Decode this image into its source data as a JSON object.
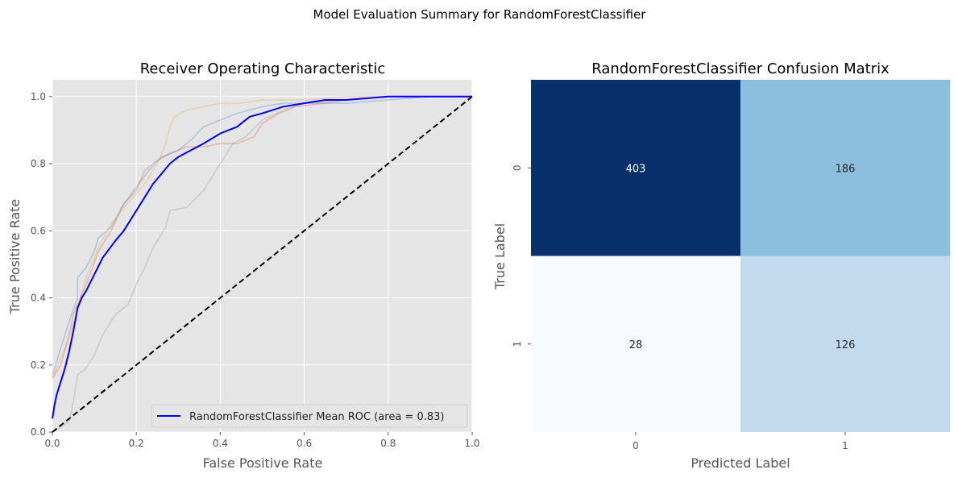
{
  "suptitle": "Model Evaluation Summary for RandomForestClassifier",
  "chart_data": [
    {
      "type": "line",
      "title": "Receiver Operating Characteristic",
      "xlabel": "False Positive Rate",
      "ylabel": "True Positive Rate",
      "xlim": [
        0,
        1
      ],
      "ylim": [
        0,
        1.05
      ],
      "xticks": [
        "0.0",
        "0.2",
        "0.4",
        "0.6",
        "0.8",
        "1.0"
      ],
      "yticks": [
        "0.0",
        "0.2",
        "0.4",
        "0.6",
        "0.8",
        "1.0"
      ],
      "grid": true,
      "legend_position": "lower-right",
      "legend": [
        "RandomForestClassifier Mean ROC (area = 0.83)"
      ],
      "series": [
        {
          "name": "RandomForestClassifier Mean ROC (area = 0.83)",
          "color": "#0000ff",
          "style": "mean",
          "x": [
            0,
            0.005,
            0.01,
            0.02,
            0.03,
            0.04,
            0.05,
            0.06,
            0.07,
            0.08,
            0.1,
            0.12,
            0.15,
            0.17,
            0.2,
            0.22,
            0.24,
            0.26,
            0.28,
            0.3,
            0.33,
            0.36,
            0.4,
            0.44,
            0.47,
            0.5,
            0.55,
            0.6,
            0.65,
            0.7,
            0.8,
            0.9,
            1.0
          ],
          "y": [
            0.04,
            0.08,
            0.11,
            0.15,
            0.19,
            0.24,
            0.3,
            0.37,
            0.4,
            0.42,
            0.47,
            0.52,
            0.57,
            0.6,
            0.66,
            0.7,
            0.74,
            0.77,
            0.8,
            0.82,
            0.84,
            0.86,
            0.89,
            0.91,
            0.94,
            0.95,
            0.97,
            0.98,
            0.99,
            0.99,
            1.0,
            1.0,
            1.0
          ]
        },
        {
          "name": "",
          "color": "#2e7bd0",
          "style": "fold",
          "x": [
            0,
            0.02,
            0.04,
            0.06,
            0.06,
            0.08,
            0.1,
            0.11,
            0.14,
            0.17,
            0.2,
            0.23,
            0.26,
            0.3,
            0.33,
            0.36,
            0.4,
            0.44,
            0.5,
            0.55,
            0.6,
            0.7,
            0.8,
            0.9,
            1.0
          ],
          "y": [
            0.17,
            0.25,
            0.33,
            0.4,
            0.46,
            0.49,
            0.54,
            0.58,
            0.61,
            0.68,
            0.73,
            0.78,
            0.82,
            0.84,
            0.87,
            0.91,
            0.93,
            0.95,
            0.97,
            0.98,
            0.98,
            0.98,
            0.99,
            1.0,
            1.0
          ]
        },
        {
          "name": "",
          "color": "#f0a030",
          "style": "fold",
          "x": [
            0,
            0.02,
            0.04,
            0.06,
            0.08,
            0.11,
            0.14,
            0.17,
            0.2,
            0.22,
            0.25,
            0.27,
            0.28,
            0.29,
            0.32,
            0.36,
            0.4,
            0.45,
            0.5,
            0.6,
            0.7,
            0.8,
            0.9,
            1.0
          ],
          "y": [
            0.16,
            0.22,
            0.28,
            0.37,
            0.46,
            0.55,
            0.62,
            0.67,
            0.71,
            0.74,
            0.8,
            0.86,
            0.91,
            0.94,
            0.96,
            0.97,
            0.98,
            0.98,
            0.99,
            0.99,
            1.0,
            1.0,
            1.0,
            1.0
          ]
        },
        {
          "name": "",
          "color": "#e0503c",
          "style": "fold",
          "x": [
            0,
            0.02,
            0.04,
            0.05,
            0.07,
            0.09,
            0.11,
            0.14,
            0.17,
            0.2,
            0.22,
            0.25,
            0.28,
            0.32,
            0.36,
            0.4,
            0.44,
            0.48,
            0.5,
            0.54,
            0.58,
            0.65,
            0.7,
            0.8,
            0.9,
            1.0
          ],
          "y": [
            0.16,
            0.2,
            0.29,
            0.35,
            0.41,
            0.47,
            0.54,
            0.6,
            0.68,
            0.72,
            0.78,
            0.81,
            0.83,
            0.85,
            0.85,
            0.86,
            0.86,
            0.88,
            0.92,
            0.95,
            0.97,
            0.98,
            0.99,
            1.0,
            1.0,
            1.0
          ]
        },
        {
          "name": "",
          "color": "#8a8a8a",
          "style": "fold",
          "x": [
            0,
            0.04,
            0.05,
            0.06,
            0.08,
            0.1,
            0.12,
            0.15,
            0.18,
            0.2,
            0.22,
            0.24,
            0.27,
            0.28,
            0.32,
            0.36,
            0.4,
            0.43,
            0.46,
            0.5,
            0.55,
            0.6,
            0.7,
            0.8,
            0.9,
            1.0
          ],
          "y": [
            0.0,
            0.03,
            0.09,
            0.17,
            0.19,
            0.23,
            0.29,
            0.35,
            0.38,
            0.44,
            0.49,
            0.55,
            0.61,
            0.66,
            0.67,
            0.72,
            0.8,
            0.86,
            0.88,
            0.93,
            0.96,
            0.98,
            0.99,
            1.0,
            1.0,
            1.0
          ]
        },
        {
          "name": "",
          "color": "#000000",
          "style": "chance",
          "x": [
            0,
            1
          ],
          "y": [
            0,
            1
          ]
        }
      ]
    },
    {
      "type": "heatmap",
      "title": "RandomForestClassifier Confusion Matrix",
      "xlabel": "Predicted Label",
      "ylabel": "True Label",
      "x_categories": [
        "0",
        "1"
      ],
      "y_categories": [
        "0",
        "1"
      ],
      "colormap": "Blues",
      "values": [
        [
          403,
          186
        ],
        [
          28,
          126
        ]
      ],
      "cell_colors": [
        [
          "#08306b",
          "#8cbfdd"
        ],
        [
          "#f7fbff",
          "#c2d9ee"
        ]
      ],
      "text_colors": [
        [
          "#ffffff",
          "#262626"
        ],
        [
          "#262626",
          "#262626"
        ]
      ]
    }
  ]
}
